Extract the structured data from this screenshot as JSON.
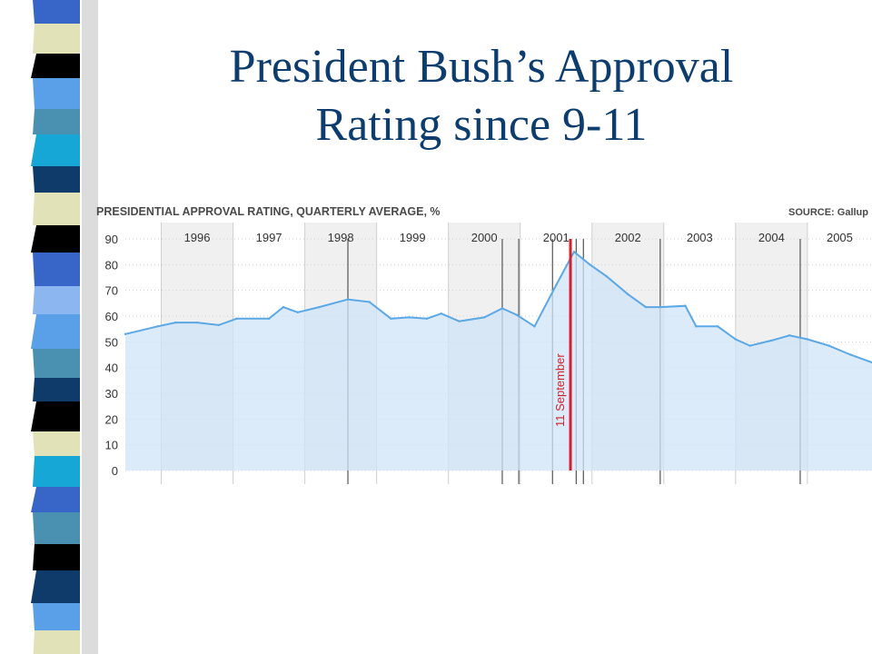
{
  "slide": {
    "title_line1": "President Bush’s Approval",
    "title_line2": "Rating since 9-11"
  },
  "colors": {
    "title": "#0d3d6e",
    "series_line": "#5ba8e6",
    "series_fill": "#cfe4f8",
    "event_line": "#d4202a",
    "strip_palette": [
      "#000000",
      "#0f3b6b",
      "#3766c8",
      "#5aa0e8",
      "#17a7d6",
      "#4a90b0",
      "#e2e2b8",
      "#8cb6f0"
    ]
  },
  "chart_data": {
    "type": "area",
    "title": "PRESIDENTIAL APPROVAL RATING, QUARTERLY AVERAGE, %",
    "source": "SOURCE: Gallup",
    "x_unit": "year",
    "xlim": [
      1995.5,
      2005.9
    ],
    "ylim": [
      0,
      90
    ],
    "yticks": [
      0,
      10,
      20,
      30,
      40,
      50,
      60,
      70,
      80,
      90
    ],
    "year_labels": [
      "1996",
      "1997",
      "1998",
      "1999",
      "2000",
      "2001",
      "2002",
      "2003",
      "2004",
      "2005"
    ],
    "shaded_years": [
      1996,
      1998,
      2000,
      2002,
      2004
    ],
    "event": {
      "label": "11 September",
      "x": 2001.7
    },
    "series": [
      {
        "x": [
          1995.5,
          1995.95,
          1996.2,
          1996.5,
          1996.8,
          1997.05,
          1997.5,
          1997.7,
          1997.9,
          1998.2,
          1998.6,
          1998.9,
          1999.2,
          1999.45,
          1999.7,
          1999.9,
          2000.15,
          2000.5,
          2000.75,
          2000.95,
          2001.2,
          2001.5,
          2001.75,
          2001.97,
          2002.2,
          2002.5,
          2002.75,
          2002.95,
          2003.3,
          2003.45,
          2003.75,
          2004.0,
          2004.2,
          2004.5,
          2004.75,
          2005.0,
          2005.3,
          2005.6,
          2005.9
        ],
        "y": [
          53,
          56,
          57.5,
          57.5,
          56.5,
          59,
          59,
          63.5,
          61.5,
          63.5,
          66.5,
          65.5,
          59,
          59.5,
          59,
          61,
          58,
          59.5,
          63,
          60.5,
          56,
          72,
          85,
          80,
          75.5,
          68.5,
          63.5,
          63.5,
          64,
          56,
          56,
          51,
          48.5,
          50.5,
          52.5,
          51,
          48.5,
          45,
          42
        ]
      }
    ]
  }
}
